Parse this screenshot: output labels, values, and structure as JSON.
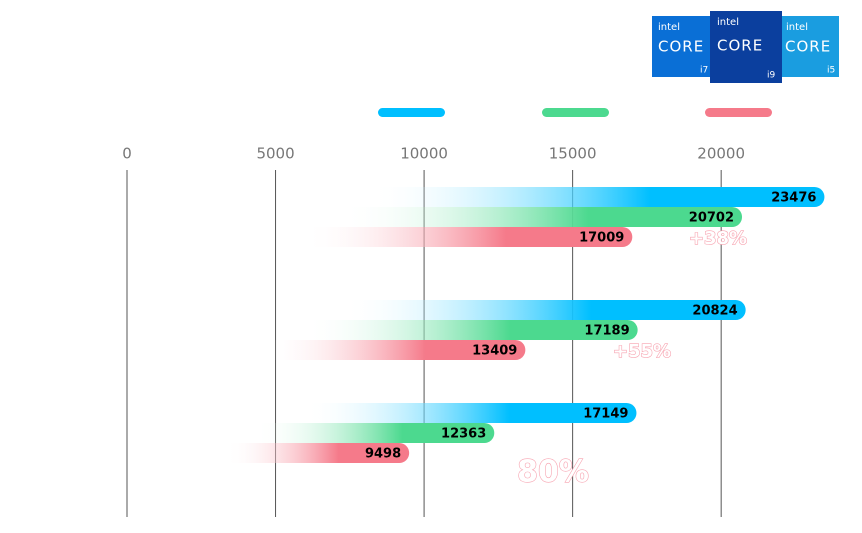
{
  "chart_data": {
    "type": "bar",
    "orientation": "horizontal",
    "logos": [
      {
        "brand": "intel",
        "product": "CORE",
        "tier": "i7",
        "color": "#0a6fd6"
      },
      {
        "brand": "intel",
        "product": "CORE",
        "tier": "i9",
        "color": "#0b3f9e"
      },
      {
        "brand": "intel",
        "product": "CORE",
        "tier": "i5",
        "color": "#1a9de0"
      }
    ],
    "categories": [
      null,
      null,
      null
    ],
    "series": [
      {
        "color": "#00bfff",
        "values": [
          23476,
          20824,
          17149
        ]
      },
      {
        "color": "#4cd98f",
        "values": [
          20702,
          17189,
          12363
        ]
      },
      {
        "color": "#f57a8a",
        "values": [
          17009,
          13409,
          9498
        ]
      }
    ],
    "annotations": [
      "+38%",
      "+55%",
      "80%"
    ],
    "xlim": [
      0,
      24000
    ],
    "xticks": [
      0,
      5000,
      10000,
      15000,
      20000
    ],
    "grid": true
  }
}
